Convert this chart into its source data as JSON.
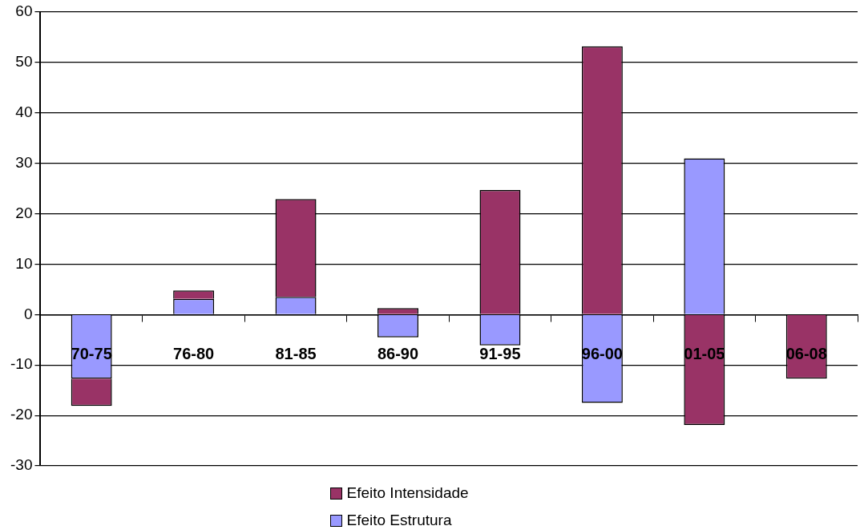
{
  "chart_data": {
    "type": "bar",
    "stacked": true,
    "categories": [
      "70-75",
      "76-80",
      "81-85",
      "86-90",
      "91-95",
      "96-00",
      "01-05",
      "06-08"
    ],
    "series": [
      {
        "name": "Efeito Estrutura",
        "color": "#9999ff",
        "values": [
          -12.7,
          3.1,
          3.5,
          -4.5,
          -6.1,
          -17.5,
          31.0,
          null
        ]
      },
      {
        "name": "Efeito Intensidade",
        "color": "#993366",
        "values": [
          -5.4,
          1.7,
          19.4,
          1.3,
          24.7,
          53.2,
          -21.9,
          -12.7
        ]
      }
    ],
    "ylim": [
      -30,
      60
    ],
    "yticks": [
      -30,
      -20,
      -10,
      0,
      10,
      20,
      30,
      40,
      50,
      60
    ],
    "grid": "y",
    "legend": "bottom"
  }
}
